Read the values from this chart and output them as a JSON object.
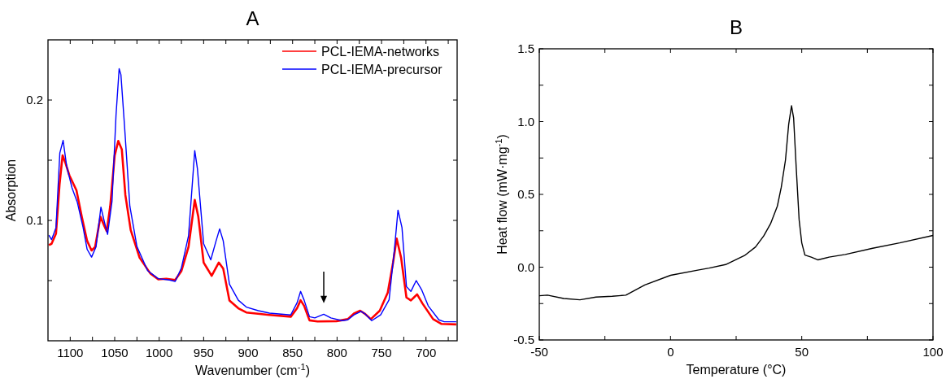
{
  "chart_data": [
    {
      "type": "line",
      "title": "A",
      "xlabel": "Wavenumber (cm$^{-1}$)",
      "ylabel": "Absorption",
      "xlim": [
        1125,
        665
      ],
      "ylim": [
        0,
        0.25
      ],
      "xticks": [
        1100,
        {
          "value": 1075,
          "label": null
        },
        1050,
        {
          "value": 1025,
          "label": null
        },
        1000,
        {
          "value": 975,
          "label": null
        },
        950,
        {
          "value": 925,
          "label": null
        },
        900,
        {
          "value": 875,
          "label": null
        },
        850,
        {
          "value": 825,
          "label": null
        },
        800,
        {
          "value": 775,
          "label": null
        },
        750,
        {
          "value": 725,
          "label": null
        },
        700,
        {
          "value": 675,
          "label": null
        }
      ],
      "yticks": [
        {
          "value": 0.05,
          "label": null
        },
        0.1,
        {
          "value": 0.15,
          "label": null
        },
        0.2
      ],
      "legend": "top right",
      "grid": false,
      "marker": "none",
      "line_style": "solid",
      "series": [
        {
          "name": "PCL-IEMA-networks",
          "color": "#ff0000",
          "x": [
            1124,
            1121,
            1116,
            1112,
            1108.6,
            1105.5,
            1101,
            1093,
            1087,
            1081,
            1076,
            1072,
            1066,
            1062,
            1059,
            1055,
            1050,
            1046,
            1042,
            1038,
            1032,
            1022,
            1010,
            1001,
            992,
            982,
            975,
            967,
            960,
            956,
            950,
            941,
            933,
            928,
            921,
            911,
            902,
            876,
            852,
            845,
            841,
            837,
            831,
            822,
            800.6,
            788,
            781,
            774,
            769,
            762,
            752,
            743,
            737,
            733,
            728,
            722,
            717,
            710,
            704,
            692,
            682.5,
            666
          ],
          "values": [
            0.0795,
            0.0806,
            0.089,
            0.13,
            0.154,
            0.148,
            0.1375,
            0.125,
            0.103,
            0.083,
            0.075,
            0.078,
            0.103,
            0.096,
            0.091,
            0.112,
            0.154,
            0.166,
            0.159,
            0.121,
            0.092,
            0.069,
            0.056,
            0.051,
            0.0515,
            0.0505,
            0.058,
            0.078,
            0.117,
            0.103,
            0.065,
            0.054,
            0.065,
            0.06,
            0.0335,
            0.027,
            0.0235,
            0.0215,
            0.02,
            0.027,
            0.0337,
            0.029,
            0.017,
            0.016,
            0.0163,
            0.018,
            0.0226,
            0.025,
            0.0226,
            0.018,
            0.025,
            0.04,
            0.065,
            0.085,
            0.069,
            0.036,
            0.0335,
            0.0386,
            0.031,
            0.018,
            0.014,
            0.0136
          ]
        },
        {
          "name": "PCL-IEMA-precursor",
          "color": "#0000ff",
          "x": [
            1124,
            1121,
            1116,
            1111.7,
            1108,
            1104,
            1098,
            1092,
            1085.5,
            1081,
            1076,
            1071,
            1065.5,
            1061.5,
            1058,
            1053,
            1048.5,
            1045,
            1043,
            1039,
            1033,
            1025,
            1013,
            1001,
            988.5,
            982,
            975,
            967,
            960,
            957,
            950,
            942,
            936,
            932,
            928,
            921,
            911,
            902,
            888.5,
            876,
            852,
            845,
            841,
            837,
            831,
            825,
            815,
            807,
            794.5,
            788,
            781,
            773,
            769,
            761,
            751,
            741.5,
            735.5,
            731.5,
            727,
            722,
            717,
            711,
            705,
            697.5,
            685.5,
            679.5,
            666
          ],
          "values": [
            0.0877,
            0.084,
            0.094,
            0.156,
            0.1665,
            0.145,
            0.127,
            0.115,
            0.094,
            0.076,
            0.0695,
            0.078,
            0.111,
            0.0985,
            0.0884,
            0.116,
            0.1877,
            0.226,
            0.221,
            0.179,
            0.112,
            0.0783,
            0.0583,
            0.0516,
            0.0505,
            0.0493,
            0.0605,
            0.0873,
            0.158,
            0.143,
            0.0806,
            0.0672,
            0.083,
            0.093,
            0.083,
            0.047,
            0.0337,
            0.028,
            0.025,
            0.023,
            0.0215,
            0.0315,
            0.041,
            0.0337,
            0.02,
            0.019,
            0.022,
            0.019,
            0.0167,
            0.0174,
            0.0215,
            0.0244,
            0.0226,
            0.0167,
            0.0215,
            0.034,
            0.076,
            0.1085,
            0.094,
            0.045,
            0.041,
            0.05,
            0.0425,
            0.029,
            0.0174,
            0.0158,
            0.0158
          ]
        }
      ]
    },
    {
      "type": "line",
      "title": "B",
      "xlabel": "Temperature (°C)",
      "ylabel": "Heat flow (mW·mg$^{-1}$)",
      "xlim": [
        -50,
        100
      ],
      "ylim": [
        -0.5,
        1.5
      ],
      "xticks": [
        -50,
        {
          "value": -25,
          "label": null
        },
        0,
        {
          "value": 25,
          "label": null
        },
        50,
        {
          "value": 75,
          "label": null
        },
        100
      ],
      "yticks": [
        {
          "value": -0.5,
          "label": "-0.5"
        },
        {
          "value": -0.25,
          "label": null
        },
        {
          "value": 0,
          "label": "0.0"
        },
        {
          "value": 0.25,
          "label": null
        },
        {
          "value": 0.5,
          "label": "0.5"
        },
        {
          "value": 0.75,
          "label": null
        },
        {
          "value": 1,
          "label": "1.0"
        },
        {
          "value": 1.25,
          "label": null
        },
        {
          "value": 1.5,
          "label": "1.5"
        }
      ],
      "legend": false,
      "grid": false,
      "marker": "none",
      "line_style": "solid",
      "series": [
        {
          "color": "#000000",
          "x": [
            -50,
            -46.9,
            -40.7,
            -34.5,
            -28.4,
            -22.2,
            -17,
            -9.8,
            0,
            10.8,
            14.7,
            21,
            28.2,
            32.4,
            35.5,
            38.1,
            40.7,
            42.2,
            43.8,
            45,
            46.1,
            46.9,
            47.9,
            49,
            50,
            51.2,
            53.6,
            56.2,
            60.4,
            66.6,
            77,
            87.3,
            100
          ],
          "values": [
            -0.196,
            -0.192,
            -0.215,
            -0.224,
            -0.205,
            -0.2,
            -0.192,
            -0.122,
            -0.056,
            -0.019,
            -0.006,
            0.018,
            0.08,
            0.139,
            0.214,
            0.298,
            0.419,
            0.549,
            0.736,
            0.978,
            1.109,
            1.025,
            0.68,
            0.326,
            0.167,
            0.083,
            0.069,
            0.05,
            0.069,
            0.087,
            0.13,
            0.167,
            0.218
          ]
        }
      ]
    }
  ]
}
